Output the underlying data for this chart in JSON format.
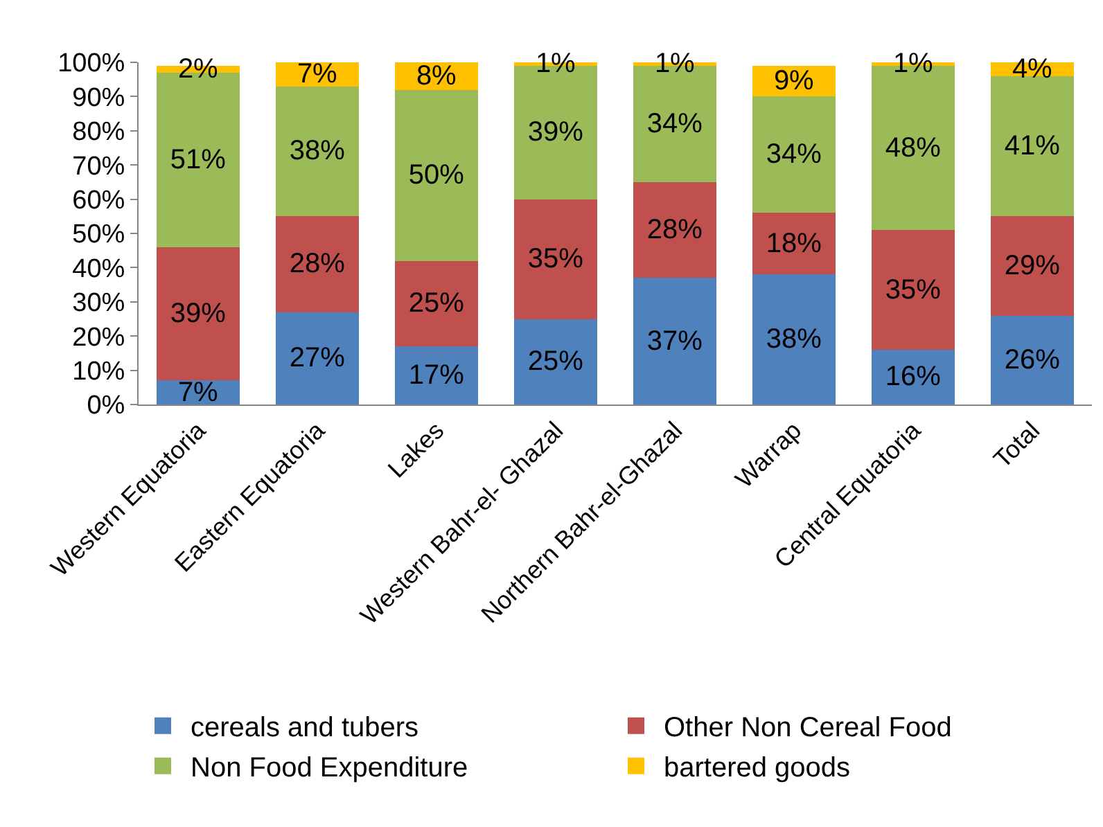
{
  "chart_data": {
    "type": "bar",
    "stacked": true,
    "categories": [
      "Western Equatoria",
      "Eastern Equatoria",
      "Lakes",
      "Western Bahr-el- Ghazal",
      "Northern Bahr-el-Ghazal",
      "Warrap",
      "Central Equatoria",
      "Total"
    ],
    "series": [
      {
        "name": "cereals and tubers",
        "color": "#4f81bd",
        "values": [
          7,
          27,
          17,
          25,
          37,
          38,
          16,
          26
        ],
        "value_labels": [
          "7%",
          "27%",
          "17%",
          "25%",
          "37%",
          "38%",
          "16%",
          "26%"
        ]
      },
      {
        "name": "Other Non Cereal Food",
        "color": "#c0504d",
        "values": [
          39,
          28,
          25,
          35,
          28,
          18,
          35,
          29
        ],
        "value_labels": [
          "39%",
          "28%",
          "25%",
          "35%",
          "28%",
          "18%",
          "35%",
          "29%"
        ]
      },
      {
        "name": "Non Food Expenditure",
        "color": "#9bbb59",
        "values": [
          51,
          38,
          50,
          39,
          34,
          34,
          48,
          41
        ],
        "value_labels": [
          "51%",
          "38%",
          "50%",
          "39%",
          "34%",
          "34%",
          "48%",
          "41%"
        ]
      },
      {
        "name": "bartered goods",
        "color": "#ffc000",
        "values": [
          2,
          7,
          8,
          1,
          1,
          9,
          1,
          4
        ],
        "value_labels": [
          "2%",
          "7%",
          "8%",
          "1%",
          "1%",
          "9%",
          "1%",
          "4%"
        ]
      }
    ],
    "ylim": [
      0,
      100
    ],
    "yticks": [
      {
        "value": 0,
        "label": "0%"
      },
      {
        "value": 10,
        "label": "10%"
      },
      {
        "value": 20,
        "label": "20%"
      },
      {
        "value": 30,
        "label": "30%"
      },
      {
        "value": 40,
        "label": "40%"
      },
      {
        "value": 50,
        "label": "50%"
      },
      {
        "value": 60,
        "label": "60%"
      },
      {
        "value": 70,
        "label": "70%"
      },
      {
        "value": 80,
        "label": "80%"
      },
      {
        "value": 90,
        "label": "90%"
      },
      {
        "value": 100,
        "label": "100%"
      }
    ],
    "legend": "bottom"
  }
}
